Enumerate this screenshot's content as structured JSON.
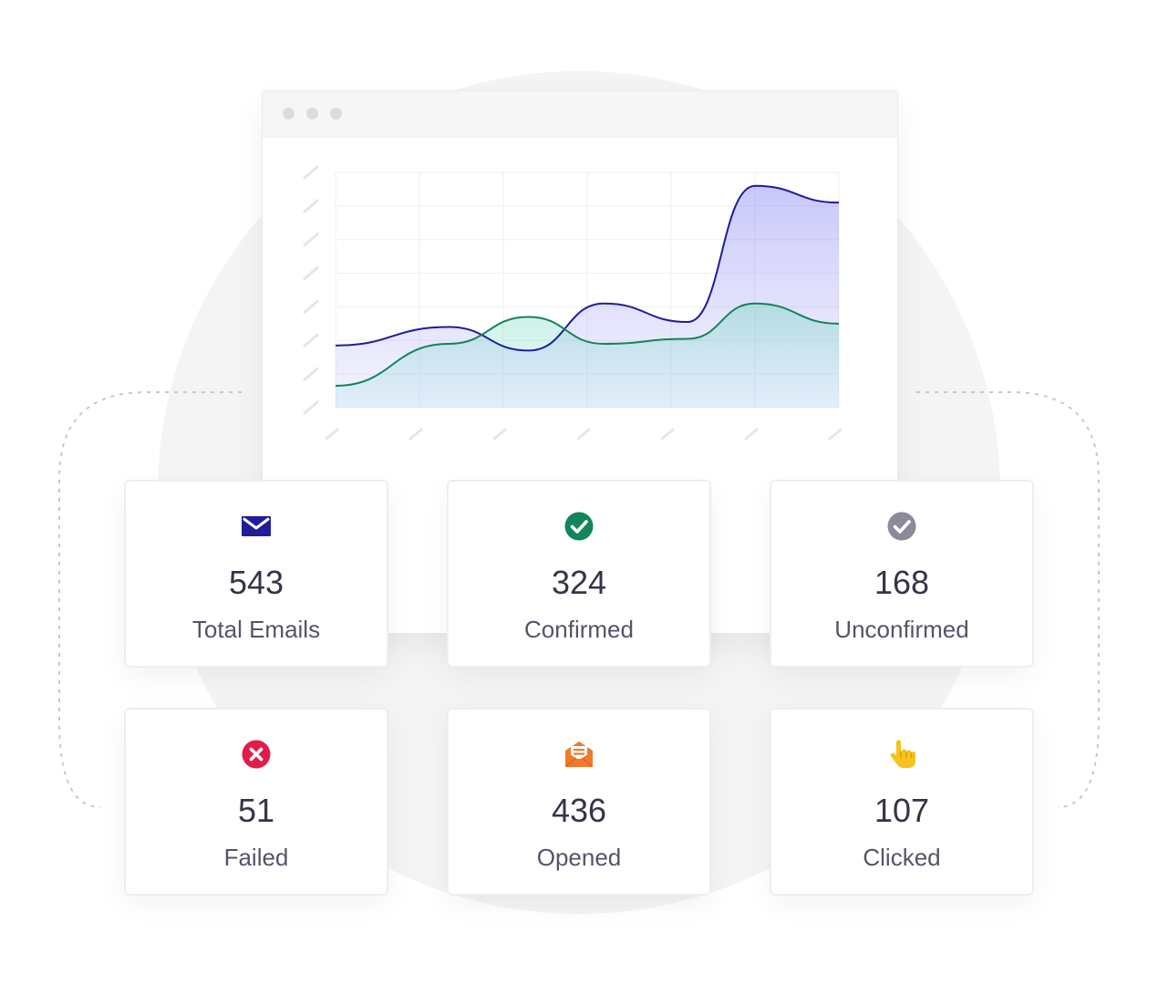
{
  "colors": {
    "series_a": "#1f1d9b",
    "series_b": "#14845a",
    "confirmed_icon": "#14845a",
    "unconfirmed_icon": "#8a8a9a",
    "failed_icon": "#e21c4a",
    "opened_icon": "#f07a2a",
    "clicked_icon": "#f5c31b"
  },
  "chart_data": {
    "type": "area",
    "x": [
      0,
      1,
      2,
      3,
      4,
      5,
      6
    ],
    "ylim": [
      0,
      7
    ],
    "grid": true,
    "series": [
      {
        "color": "#1f1d9b",
        "points": [
          [
            0,
            1.85
          ],
          [
            1.35,
            2.4
          ],
          [
            2.3,
            1.7
          ],
          [
            3.2,
            3.1
          ],
          [
            4.2,
            2.55
          ],
          [
            5,
            6.6
          ],
          [
            6,
            6.1
          ]
        ]
      },
      {
        "color": "#14845a",
        "points": [
          [
            0,
            0.65
          ],
          [
            1.35,
            1.9
          ],
          [
            2.3,
            2.7
          ],
          [
            3.2,
            1.9
          ],
          [
            4.2,
            2.05
          ],
          [
            5,
            3.1
          ],
          [
            6,
            2.5
          ]
        ]
      }
    ]
  },
  "stats": [
    {
      "value": "543",
      "label": "Total Emails",
      "icon": "envelope-icon"
    },
    {
      "value": "324",
      "label": "Confirmed",
      "icon": "check-circle-icon"
    },
    {
      "value": "168",
      "label": "Unconfirmed",
      "icon": "check-circle-gray-icon"
    },
    {
      "value": "51",
      "label": "Failed",
      "icon": "x-circle-icon"
    },
    {
      "value": "436",
      "label": "Opened",
      "icon": "open-envelope-icon"
    },
    {
      "value": "107",
      "label": "Clicked",
      "icon": "pointing-hand-icon"
    }
  ]
}
